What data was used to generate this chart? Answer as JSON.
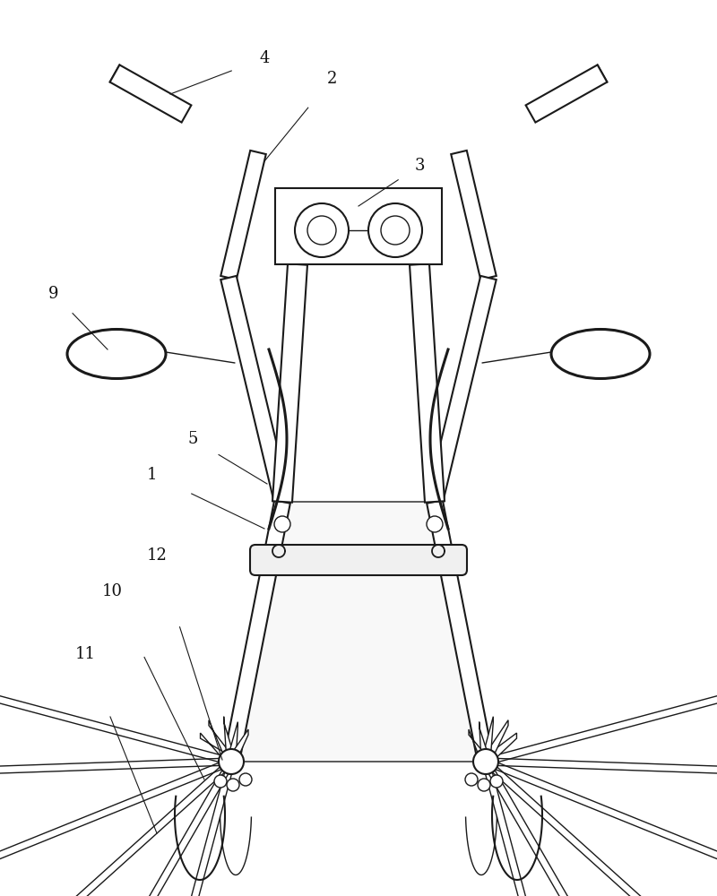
{
  "bg_color": "#ffffff",
  "line_color": "#1a1a1a",
  "fig_width": 8.0,
  "fig_height": 10.0,
  "lw_thin": 1.0,
  "lw_med": 1.5,
  "lw_thick": 2.2
}
